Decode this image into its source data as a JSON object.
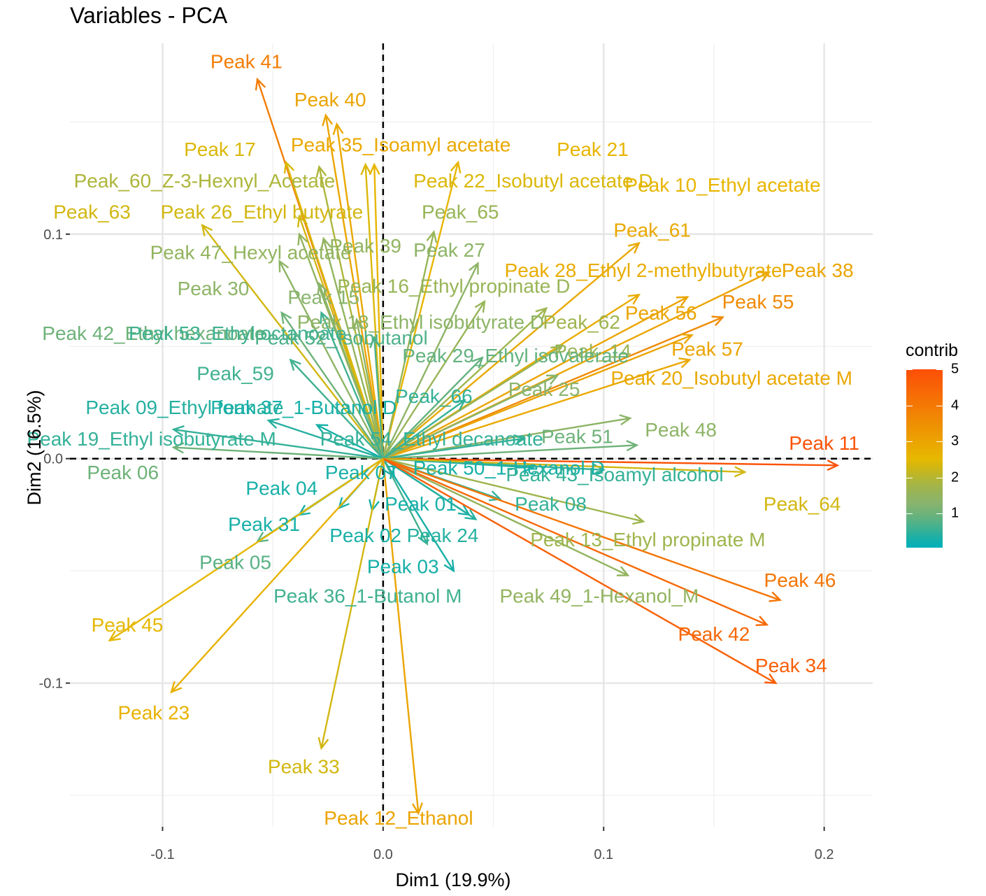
{
  "chart_data": {
    "type": "scatter",
    "title": "Variables - PCA",
    "xlabel": "Dim1 (19.9%)",
    "ylabel": "Dim2 (16.5%)",
    "xlim": [
      -0.142,
      0.222
    ],
    "ylim": [
      -0.164,
      0.185
    ],
    "xticks": [
      -0.1,
      0.0,
      0.1,
      0.2
    ],
    "xtick_labels": [
      "-0.1",
      "0.0",
      "0.1",
      "0.2"
    ],
    "yticks": [
      -0.1,
      0.0,
      0.1
    ],
    "ytick_labels": [
      "-0.1",
      "0.0",
      "0.1"
    ],
    "grid": true,
    "legend": {
      "title": "contrib",
      "position": "right",
      "min": 0.05,
      "max": 5.0,
      "ticks": [
        1,
        2,
        3,
        4,
        5
      ],
      "tick_labels": [
        "1",
        "2",
        "3",
        "4",
        "5"
      ],
      "colors": [
        "#00AFBB",
        "#E7B800",
        "#FC4E07"
      ]
    },
    "variables": [
      {
        "name": "Peak 41",
        "x": -0.057,
        "y": 0.169,
        "contrib": 3.9,
        "lx": -0.062,
        "ly": 0.177
      },
      {
        "name": "Peak 40",
        "x": -0.026,
        "y": 0.153,
        "contrib": 3.0,
        "lx": -0.024,
        "ly": 0.16
      },
      {
        "name": "Peak 35_Isoamyl acetate",
        "x": -0.021,
        "y": 0.149,
        "contrib": 2.9,
        "lx": 0.008,
        "ly": 0.14
      },
      {
        "name": "Peak 21",
        "x": 0.034,
        "y": 0.132,
        "contrib": 2.6,
        "lx": 0.095,
        "ly": 0.138
      },
      {
        "name": "Peak 17",
        "x": -0.044,
        "y": 0.132,
        "contrib": 2.4,
        "lx": -0.074,
        "ly": 0.138
      },
      {
        "name": "Peak_60_Z-3-Hexnyl_Acetate",
        "x": -0.029,
        "y": 0.13,
        "contrib": 1.9,
        "lx": -0.081,
        "ly": 0.124
      },
      {
        "name": "Peak 22_Isobutyl acetate D",
        "x": -0.008,
        "y": 0.131,
        "contrib": 2.4,
        "lx": 0.068,
        "ly": 0.124
      },
      {
        "name": "Peak 10_Ethyl acetate",
        "x": -0.004,
        "y": 0.131,
        "contrib": 2.6,
        "lx": 0.154,
        "ly": 0.122
      },
      {
        "name": "Peak_63",
        "x": -0.082,
        "y": 0.104,
        "contrib": 2.3,
        "lx": -0.132,
        "ly": 0.11
      },
      {
        "name": "Peak 26_Ethyl butyrate",
        "x": -0.038,
        "y": 0.108,
        "contrib": 2.3,
        "lx": -0.055,
        "ly": 0.11
      },
      {
        "name": "Peak_65",
        "x": 0.023,
        "y": 0.101,
        "contrib": 1.6,
        "lx": 0.035,
        "ly": 0.11
      },
      {
        "name": "Peak_61",
        "x": 0.116,
        "y": 0.096,
        "contrib": 2.9,
        "lx": 0.122,
        "ly": 0.102
      },
      {
        "name": "Peak 47_Hexyl acetate",
        "x": -0.038,
        "y": 0.1,
        "contrib": 1.5,
        "lx": -0.06,
        "ly": 0.092
      },
      {
        "name": "Peak 39",
        "x": -0.027,
        "y": 0.098,
        "contrib": 1.5,
        "lx": -0.008,
        "ly": 0.095
      },
      {
        "name": "Peak 27",
        "x": 0.043,
        "y": 0.087,
        "contrib": 1.4,
        "lx": 0.03,
        "ly": 0.093
      },
      {
        "name": "Peak 28_Ethyl 2-methylbutyrate",
        "x": 0.116,
        "y": 0.073,
        "contrib": 2.8,
        "lx": 0.118,
        "ly": 0.084
      },
      {
        "name": "Peak 38",
        "x": 0.175,
        "y": 0.083,
        "contrib": 3.0,
        "lx": 0.197,
        "ly": 0.084
      },
      {
        "name": "Peak 30",
        "x": -0.047,
        "y": 0.088,
        "contrib": 1.4,
        "lx": -0.077,
        "ly": 0.076
      },
      {
        "name": "Peak 15",
        "x": -0.029,
        "y": 0.078,
        "contrib": 1.3,
        "lx": -0.027,
        "ly": 0.072
      },
      {
        "name": "Peak 16_Ethyl propinate D",
        "x": 0.046,
        "y": 0.07,
        "contrib": 1.6,
        "lx": 0.032,
        "ly": 0.077
      },
      {
        "name": "Peak 55",
        "x": 0.154,
        "y": 0.063,
        "contrib": 3.6,
        "lx": 0.17,
        "ly": 0.07
      },
      {
        "name": "Peak 56",
        "x": 0.138,
        "y": 0.072,
        "contrib": 3.0,
        "lx": 0.126,
        "ly": 0.065
      },
      {
        "name": "Peak 42_Ethyl hexanoate",
        "x": -0.046,
        "y": 0.065,
        "contrib": 1.0,
        "lx": -0.104,
        "ly": 0.056
      },
      {
        "name": "Peak 53_Ethyl octanoate",
        "x": -0.028,
        "y": 0.065,
        "contrib": 0.6,
        "lx": -0.066,
        "ly": 0.056
      },
      {
        "name": "Peak 18_Ethyl isobutyrate D",
        "x": -0.012,
        "y": 0.062,
        "contrib": 1.4,
        "lx": 0.017,
        "ly": 0.061
      },
      {
        "name": "Peak_62",
        "x": 0.074,
        "y": 0.067,
        "contrib": 1.7,
        "lx": 0.09,
        "ly": 0.061
      },
      {
        "name": "Peak 52_Isobutanol",
        "x": -0.004,
        "y": 0.054,
        "contrib": 0.7,
        "lx": -0.019,
        "ly": 0.054
      },
      {
        "name": "Peak_14",
        "x": 0.081,
        "y": 0.05,
        "contrib": 1.6,
        "lx": 0.095,
        "ly": 0.048
      },
      {
        "name": "Peak 57",
        "x": 0.14,
        "y": 0.055,
        "contrib": 3.0,
        "lx": 0.147,
        "ly": 0.049
      },
      {
        "name": "Peak 29_Ethyl isovalerate",
        "x": 0.045,
        "y": 0.045,
        "contrib": 0.9,
        "lx": 0.06,
        "ly": 0.046
      },
      {
        "name": "Peak_59",
        "x": -0.042,
        "y": 0.044,
        "contrib": 0.6,
        "lx": -0.067,
        "ly": 0.038
      },
      {
        "name": "Peak 20_Isobutyl acetate M",
        "x": 0.139,
        "y": 0.044,
        "contrib": 2.9,
        "lx": 0.158,
        "ly": 0.036
      },
      {
        "name": "Peak 25",
        "x": 0.079,
        "y": 0.037,
        "contrib": 1.3,
        "lx": 0.073,
        "ly": 0.031
      },
      {
        "name": "Peak 09_Ethyl formate",
        "x": -0.052,
        "y": 0.017,
        "contrib": 0.4,
        "lx": -0.09,
        "ly": 0.023
      },
      {
        "name": "Peak 37_1-Butanol D",
        "x": -0.03,
        "y": 0.015,
        "contrib": 0.3,
        "lx": -0.036,
        "ly": 0.023
      },
      {
        "name": "Peak_66",
        "x": 0.037,
        "y": 0.026,
        "contrib": 0.5,
        "lx": 0.023,
        "ly": 0.028
      },
      {
        "name": "Peak 48",
        "x": 0.112,
        "y": 0.018,
        "contrib": 1.4,
        "lx": 0.135,
        "ly": 0.013
      },
      {
        "name": "Peak 51",
        "x": 0.115,
        "y": 0.006,
        "contrib": 1.0,
        "lx": 0.088,
        "ly": 0.01
      },
      {
        "name": "Peak 54_Ethyl decanoate",
        "x": 0.064,
        "y": 0.009,
        "contrib": 0.5,
        "lx": 0.022,
        "ly": 0.009
      },
      {
        "name": "Peak 19_Ethyl isobutyrate M",
        "x": -0.095,
        "y": 0.013,
        "contrib": 0.5,
        "lx": -0.105,
        "ly": 0.009
      },
      {
        "name": "Peak 11",
        "x": 0.206,
        "y": -0.003,
        "contrib": 4.9,
        "lx": 0.2,
        "ly": 0.007
      },
      {
        "name": "Peak 06",
        "x": -0.095,
        "y": 0.005,
        "contrib": 1.0,
        "lx": -0.118,
        "ly": -0.006
      },
      {
        "name": "Peak 07",
        "x": 0.005,
        "y": -0.008,
        "contrib": 0.3,
        "lx": -0.01,
        "ly": -0.006
      },
      {
        "name": "Peak 50_1-Hexanol D",
        "x": 0.068,
        "y": -0.004,
        "contrib": 0.3,
        "lx": 0.057,
        "ly": -0.004
      },
      {
        "name": "Peak 43_Isoamyl alcohol",
        "x": 0.1,
        "y": -0.005,
        "contrib": 0.5,
        "lx": 0.105,
        "ly": -0.007
      },
      {
        "name": "Peak_64",
        "x": 0.164,
        "y": -0.006,
        "contrib": 2.3,
        "lx": 0.19,
        "ly": -0.02
      },
      {
        "name": "Peak 04",
        "x": -0.02,
        "y": -0.022,
        "contrib": 0.3,
        "lx": -0.046,
        "ly": -0.013
      },
      {
        "name": "Peak 01",
        "x": 0.039,
        "y": -0.025,
        "contrib": 0.3,
        "lx": 0.017,
        "ly": -0.02
      },
      {
        "name": "Peak 08",
        "x": 0.053,
        "y": -0.018,
        "contrib": 0.5,
        "lx": 0.076,
        "ly": -0.02
      },
      {
        "name": "Peak 31",
        "x": -0.038,
        "y": -0.025,
        "contrib": 0.3,
        "lx": -0.054,
        "ly": -0.029
      },
      {
        "name": "Peak 13_Ethyl propinate M",
        "x": 0.118,
        "y": -0.028,
        "contrib": 1.7,
        "lx": 0.12,
        "ly": -0.036
      },
      {
        "name": "Peak 02",
        "x": -0.005,
        "y": -0.023,
        "contrib": 0.3,
        "lx": -0.008,
        "ly": -0.034
      },
      {
        "name": "Peak 24",
        "x": 0.042,
        "y": -0.027,
        "contrib": 0.4,
        "lx": 0.027,
        "ly": -0.034
      },
      {
        "name": "Peak 05",
        "x": -0.057,
        "y": -0.037,
        "contrib": 0.8,
        "lx": -0.067,
        "ly": -0.046
      },
      {
        "name": "Peak 03",
        "x": 0.032,
        "y": -0.05,
        "contrib": 0.3,
        "lx": 0.009,
        "ly": -0.048
      },
      {
        "name": "Peak 49_1-Hexanol_M",
        "x": 0.111,
        "y": -0.052,
        "contrib": 1.5,
        "lx": 0.098,
        "ly": -0.061
      },
      {
        "name": "Peak 46",
        "x": 0.18,
        "y": -0.063,
        "contrib": 4.1,
        "lx": 0.189,
        "ly": -0.054
      },
      {
        "name": "Peak 36_1-Butanol M",
        "x": 0.02,
        "y": -0.038,
        "contrib": 0.6,
        "lx": -0.007,
        "ly": -0.061
      },
      {
        "name": "Peak 45",
        "x": -0.124,
        "y": -0.081,
        "contrib": 2.5,
        "lx": -0.116,
        "ly": -0.074
      },
      {
        "name": "Peak 42",
        "x": 0.174,
        "y": -0.074,
        "contrib": 4.4,
        "lx": 0.15,
        "ly": -0.078
      },
      {
        "name": "Peak 34",
        "x": 0.178,
        "y": -0.1,
        "contrib": 4.6,
        "lx": 0.185,
        "ly": -0.092
      },
      {
        "name": "Peak 23",
        "x": -0.096,
        "y": -0.104,
        "contrib": 2.7,
        "lx": -0.104,
        "ly": -0.113
      },
      {
        "name": "Peak 33",
        "x": -0.028,
        "y": -0.129,
        "contrib": 2.3,
        "lx": -0.036,
        "ly": -0.137
      },
      {
        "name": "Peak 12_Ethanol",
        "x": 0.016,
        "y": -0.158,
        "contrib": 3.0,
        "lx": 0.007,
        "ly": -0.16
      }
    ]
  }
}
